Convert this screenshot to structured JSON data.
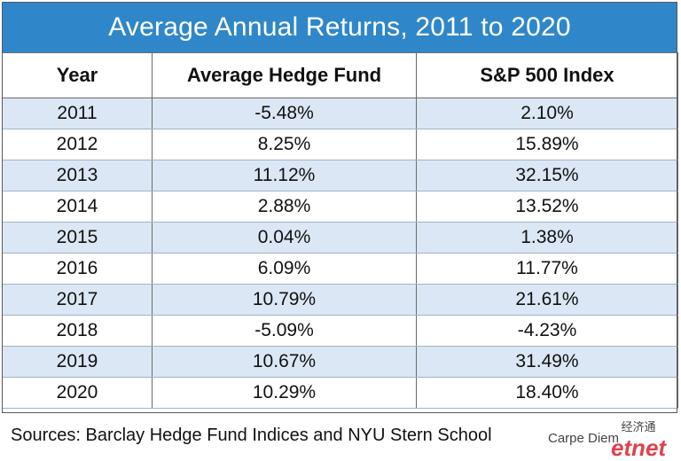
{
  "title": "Average Annual Returns, 2011 to 2020",
  "columns": [
    "Year",
    "Average Hedge Fund",
    "S&P 500 Index"
  ],
  "rows": [
    [
      "2011",
      "-5.48%",
      "2.10%"
    ],
    [
      "2012",
      "8.25%",
      "15.89%"
    ],
    [
      "2013",
      "11.12%",
      "32.15%"
    ],
    [
      "2014",
      "2.88%",
      "13.52%"
    ],
    [
      "2015",
      "0.04%",
      "1.38%"
    ],
    [
      "2016",
      "6.09%",
      "11.77%"
    ],
    [
      "2017",
      "10.79%",
      "21.61%"
    ],
    [
      "2018",
      "-5.09%",
      "-4.23%"
    ],
    [
      "2019",
      "10.67%",
      "31.49%"
    ],
    [
      "2020",
      "10.29%",
      "18.40%"
    ]
  ],
  "sources": "Sources: Barclay Hedge Fund Indices and NYU Stern School",
  "credit": "Carpe Diem",
  "watermark_text": "etnet",
  "colors": {
    "header": "#2f87c9",
    "stripe": "#dbe7f4",
    "watermark": "#d9232e"
  },
  "chart_data": {
    "type": "table",
    "title": "Average Annual Returns, 2011 to 2020",
    "columns": [
      "Year",
      "Average Hedge Fund",
      "S&P 500 Index"
    ],
    "categories": [
      "2011",
      "2012",
      "2013",
      "2014",
      "2015",
      "2016",
      "2017",
      "2018",
      "2019",
      "2020"
    ],
    "series": [
      {
        "name": "Average Hedge Fund",
        "values": [
          -5.48,
          8.25,
          11.12,
          2.88,
          0.04,
          6.09,
          10.79,
          -5.09,
          10.67,
          10.29
        ]
      },
      {
        "name": "S&P 500 Index",
        "values": [
          2.1,
          15.89,
          32.15,
          13.52,
          1.38,
          11.77,
          21.61,
          -4.23,
          31.49,
          18.4
        ]
      }
    ]
  }
}
